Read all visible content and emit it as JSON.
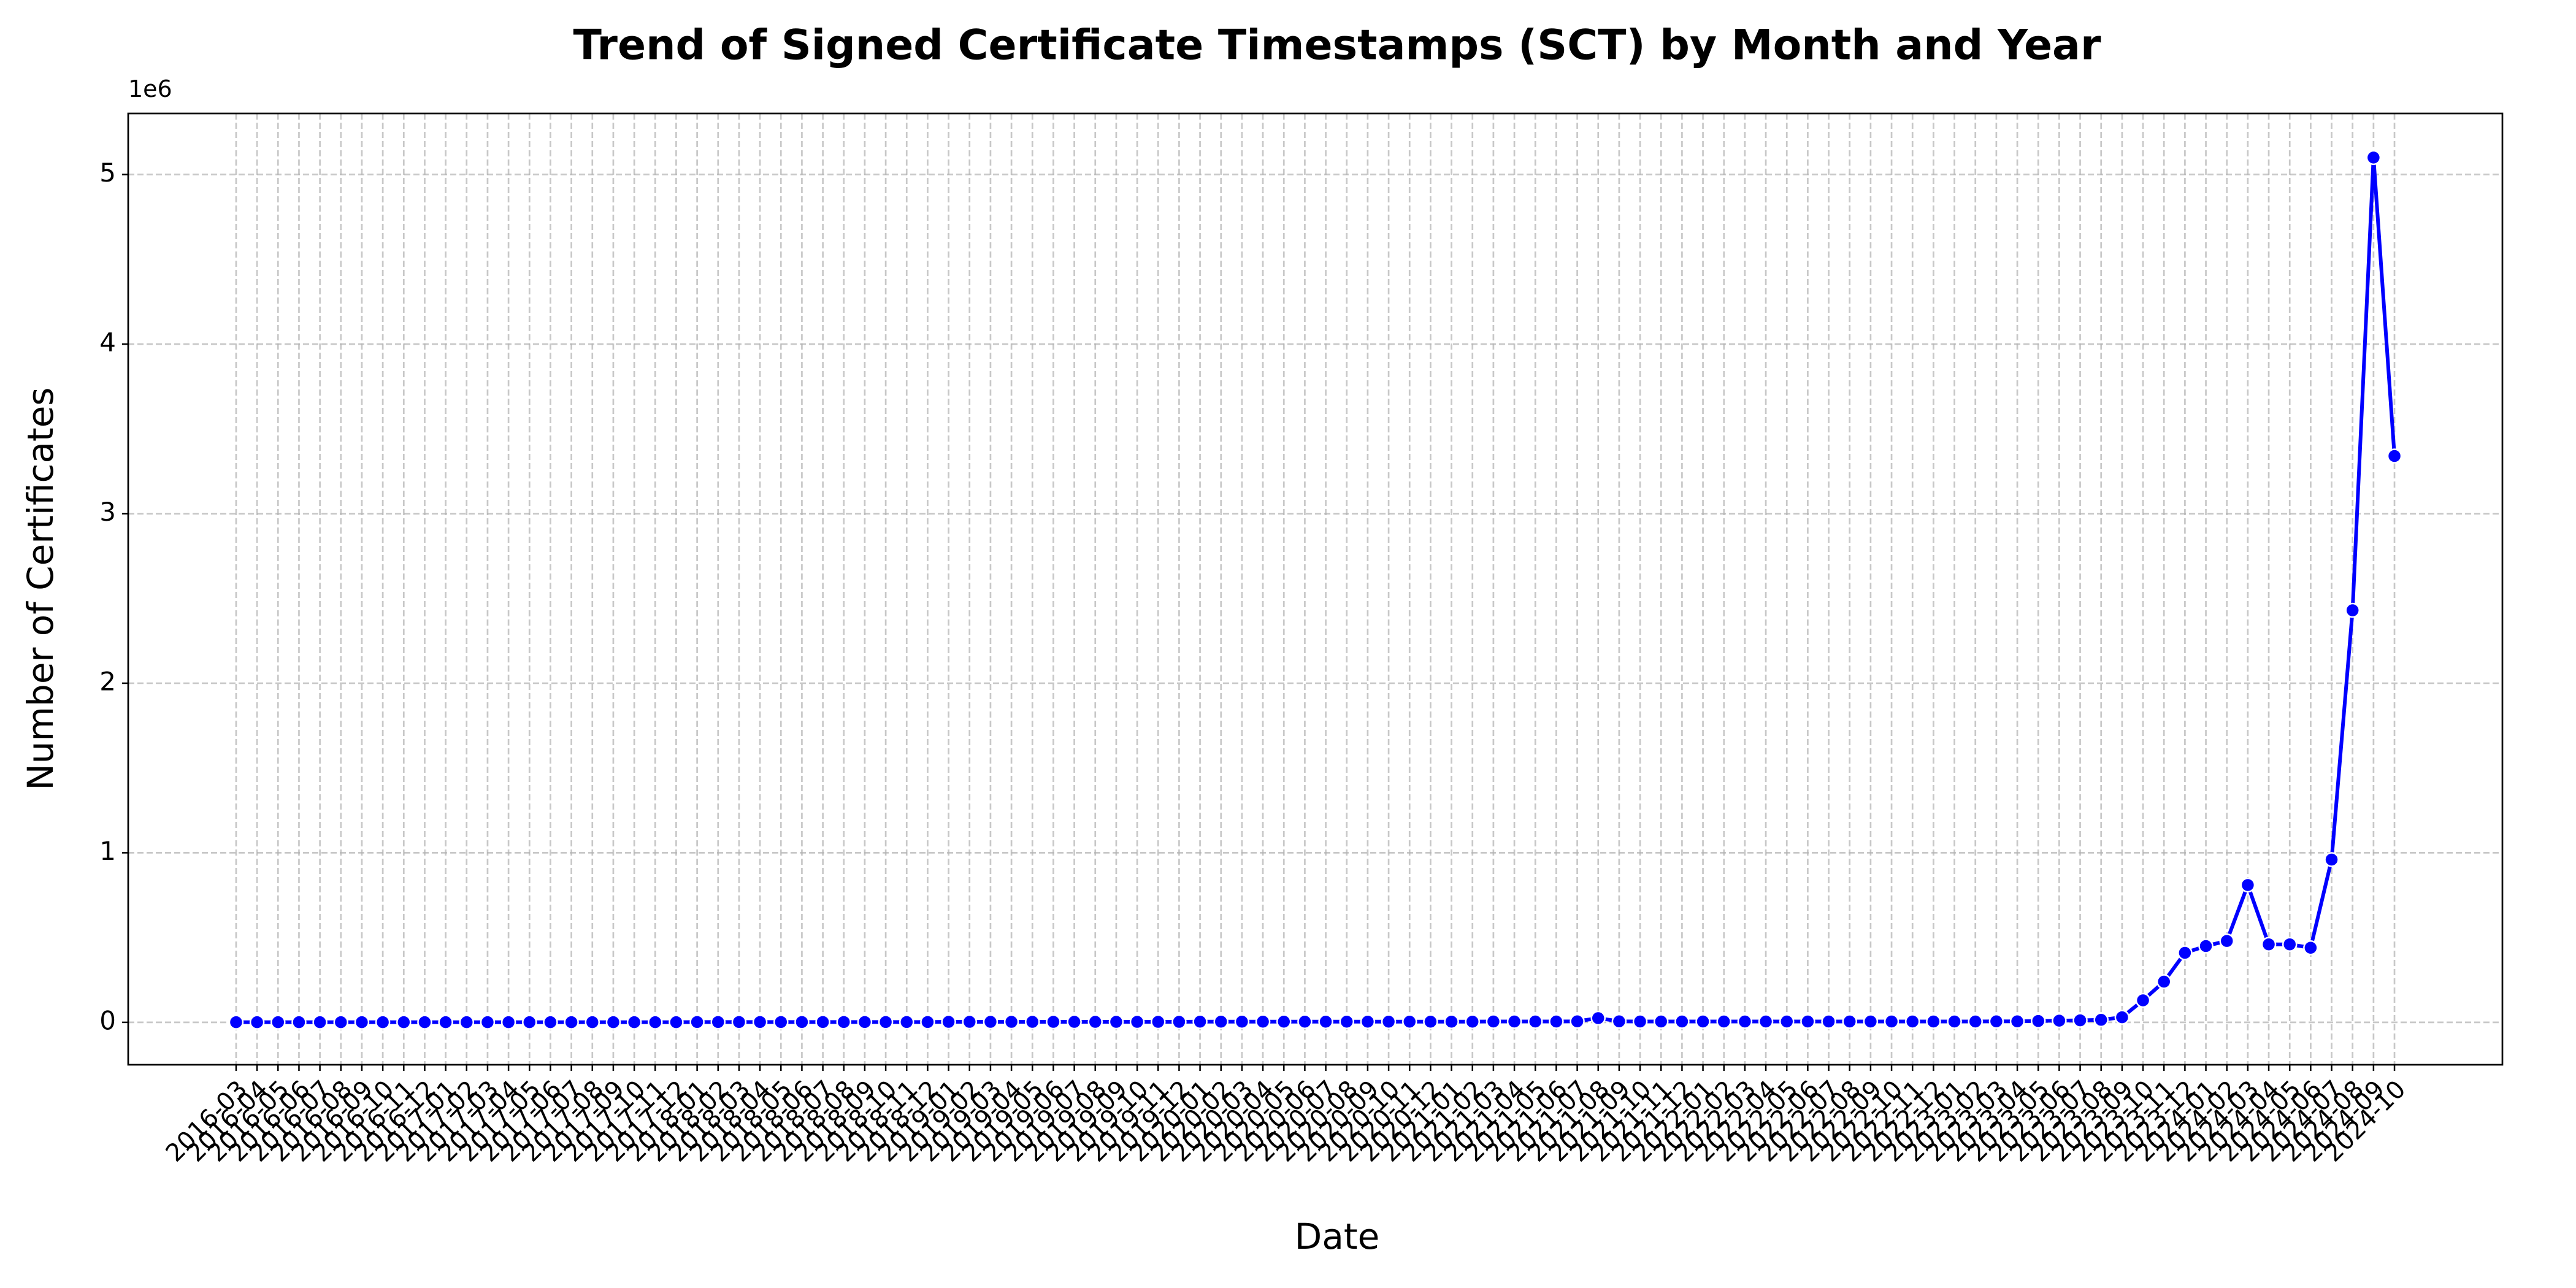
{
  "chart_data": {
    "type": "line",
    "title": "Trend of Signed Certificate Timestamps (SCT) by Month and Year",
    "x_label": "Date",
    "y_label": "Number of Certificates",
    "y_offset_label": "1e6",
    "categories": [
      "2016-03",
      "2016-04",
      "2016-05",
      "2016-06",
      "2016-07",
      "2016-08",
      "2016-09",
      "2016-10",
      "2016-11",
      "2016-12",
      "2017-01",
      "2017-02",
      "2017-03",
      "2017-04",
      "2017-05",
      "2017-06",
      "2017-07",
      "2017-08",
      "2017-09",
      "2017-10",
      "2017-11",
      "2017-12",
      "2018-01",
      "2018-02",
      "2018-03",
      "2018-04",
      "2018-05",
      "2018-06",
      "2018-07",
      "2018-08",
      "2018-09",
      "2018-10",
      "2018-11",
      "2018-12",
      "2019-01",
      "2019-02",
      "2019-03",
      "2019-04",
      "2019-05",
      "2019-06",
      "2019-07",
      "2019-08",
      "2019-09",
      "2019-10",
      "2019-11",
      "2019-12",
      "2020-01",
      "2020-02",
      "2020-03",
      "2020-04",
      "2020-05",
      "2020-06",
      "2020-07",
      "2020-08",
      "2020-09",
      "2020-10",
      "2020-11",
      "2020-12",
      "2021-01",
      "2021-02",
      "2021-03",
      "2021-04",
      "2021-05",
      "2021-06",
      "2021-07",
      "2021-08",
      "2021-09",
      "2021-10",
      "2021-11",
      "2021-12",
      "2022-01",
      "2022-02",
      "2022-03",
      "2022-04",
      "2022-05",
      "2022-06",
      "2022-07",
      "2022-08",
      "2022-09",
      "2022-10",
      "2022-11",
      "2022-12",
      "2023-01",
      "2023-02",
      "2023-03",
      "2023-04",
      "2023-05",
      "2023-06",
      "2023-07",
      "2023-08",
      "2023-09",
      "2023-10",
      "2023-11",
      "2023-12",
      "2024-01",
      "2024-02",
      "2024-03",
      "2024-04",
      "2024-05",
      "2024-06",
      "2024-07",
      "2024-08",
      "2024-09",
      "2024-10"
    ],
    "series": [
      {
        "name": "SCT",
        "color": "#0000ff",
        "values": [
          0.001,
          0.001,
          0.001,
          0.001,
          0.001,
          0.001,
          0.001,
          0.001,
          0.001,
          0.001,
          0.001,
          0.001,
          0.001,
          0.001,
          0.001,
          0.001,
          0.001,
          0.001,
          0.001,
          0.001,
          0.001,
          0.001,
          0.002,
          0.002,
          0.002,
          0.002,
          0.002,
          0.002,
          0.002,
          0.002,
          0.002,
          0.002,
          0.002,
          0.002,
          0.003,
          0.003,
          0.003,
          0.003,
          0.003,
          0.003,
          0.003,
          0.003,
          0.003,
          0.003,
          0.003,
          0.003,
          0.004,
          0.004,
          0.004,
          0.004,
          0.004,
          0.004,
          0.004,
          0.004,
          0.004,
          0.004,
          0.004,
          0.004,
          0.004,
          0.004,
          0.005,
          0.005,
          0.005,
          0.005,
          0.006,
          0.025,
          0.006,
          0.005,
          0.005,
          0.005,
          0.005,
          0.005,
          0.005,
          0.005,
          0.005,
          0.005,
          0.005,
          0.005,
          0.005,
          0.005,
          0.005,
          0.005,
          0.005,
          0.005,
          0.006,
          0.006,
          0.008,
          0.01,
          0.012,
          0.015,
          0.03,
          0.13,
          0.24,
          0.41,
          0.45,
          0.48,
          0.81,
          0.46,
          0.46,
          0.44,
          0.96,
          2.43,
          5.1,
          3.34
        ]
      }
    ],
    "ylim": [
      -0.25,
      5.36
    ],
    "yticks": [
      0,
      1,
      2,
      3,
      4,
      5
    ],
    "grid": true
  }
}
